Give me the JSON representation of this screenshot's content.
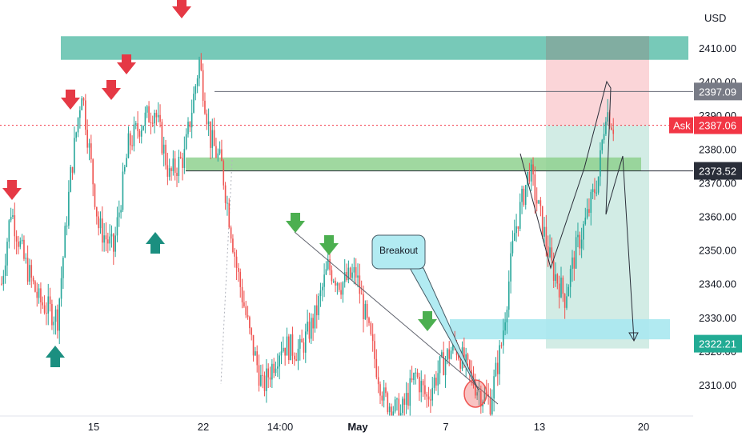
{
  "currency": "USD",
  "callout": "Breakout",
  "ask_label": "Ask",
  "colors": {
    "up": "#26a69a",
    "down": "#ef5350",
    "zone_teal": "#5fbfac",
    "zone_green": "#8fd18f",
    "zone_cyan": "#a9e8ef",
    "target_zone": "#cdeae2",
    "stop_zone": "#fbd5d8",
    "arrow_down": "#e53945",
    "arrow_up_teal": "#1b8f80",
    "arrow_down_green": "#4caf50",
    "tag_grey": "#787b86",
    "tag_red": "#f23645",
    "tag_dark": "#2a2e39",
    "tag_teal": "#22ab94"
  },
  "chart_data": {
    "type": "candlestick",
    "y_axis": {
      "ylim": [
        2300.5,
        2421.5
      ],
      "ticks": [
        "2310.00",
        "2320.00",
        "2330.00",
        "2340.00",
        "2350.00",
        "2360.00",
        "2370.00",
        "2380.00",
        "2390.00",
        "2400.00",
        "2410.00"
      ]
    },
    "x_axis": {
      "labels": [
        {
          "text": "15",
          "bold": false
        },
        {
          "text": "22",
          "bold": false
        },
        {
          "text": "14:00",
          "bold": false
        },
        {
          "text": "May",
          "bold": true
        },
        {
          "text": "7",
          "bold": false
        },
        {
          "text": "13",
          "bold": false
        },
        {
          "text": "20",
          "bold": false
        }
      ]
    },
    "price_tags": [
      {
        "value": "2397.09",
        "style": "grey"
      },
      {
        "value": "2387.06",
        "style": "red"
      },
      {
        "value": "2373.52",
        "style": "dark"
      },
      {
        "value": "2322.21",
        "style": "teal"
      }
    ],
    "key_levels": {
      "ask": 2387.06,
      "resistance_line": 2397.09,
      "support_line": 2373.52,
      "target": 2322.21
    },
    "zones": [
      {
        "name": "upper-resistance-zone",
        "y_top": 2413.5,
        "y_bottom": 2406.5
      },
      {
        "name": "breakout-retest-zone",
        "y_top": 2377.5,
        "y_bottom": 2373.5
      },
      {
        "name": "target-support-zone",
        "y_top": 2329.5,
        "y_bottom": 2323.5
      }
    ],
    "position": {
      "entry": 2387.06,
      "stop": 2413.5,
      "target": 2322.21
    },
    "candle_trend": [
      [
        0,
        2340
      ],
      [
        5,
        2362
      ],
      [
        12,
        2347
      ],
      [
        20,
        2335
      ],
      [
        30,
        2330
      ],
      [
        37,
        2372
      ],
      [
        43,
        2398
      ],
      [
        52,
        2357
      ],
      [
        60,
        2350
      ],
      [
        68,
        2381
      ],
      [
        74,
        2387
      ],
      [
        82,
        2392
      ],
      [
        90,
        2372
      ],
      [
        98,
        2378
      ],
      [
        106,
        2406
      ],
      [
        112,
        2383
      ],
      [
        118,
        2375
      ],
      [
        126,
        2345
      ],
      [
        133,
        2325
      ],
      [
        140,
        2309
      ],
      [
        150,
        2322
      ],
      [
        160,
        2320
      ],
      [
        168,
        2330
      ],
      [
        175,
        2345
      ],
      [
        182,
        2340
      ],
      [
        190,
        2343
      ],
      [
        197,
        2325
      ],
      [
        205,
        2306
      ],
      [
        214,
        2301
      ],
      [
        222,
        2313
      ],
      [
        228,
        2306
      ],
      [
        235,
        2315
      ],
      [
        243,
        2322
      ],
      [
        250,
        2314
      ],
      [
        256,
        2308
      ],
      [
        262,
        2305
      ],
      [
        268,
        2322
      ],
      [
        275,
        2355
      ],
      [
        283,
        2374
      ],
      [
        288,
        2362
      ],
      [
        295,
        2345
      ],
      [
        302,
        2336
      ],
      [
        308,
        2350
      ],
      [
        314,
        2360
      ],
      [
        320,
        2372
      ],
      [
        324,
        2392
      ],
      [
        328,
        2387
      ]
    ]
  }
}
